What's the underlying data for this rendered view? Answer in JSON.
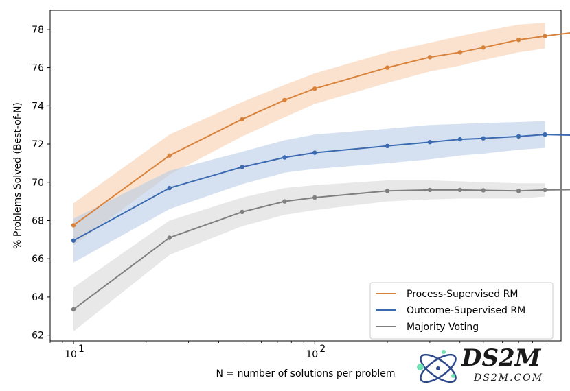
{
  "chart_data": {
    "type": "line",
    "xscale": "log",
    "xlim": [
      8,
      1050
    ],
    "ylim": [
      61.7,
      79.0
    ],
    "xlabel": "N = number of solutions per problem",
    "ylabel": "% Problems Solved (Best-of-N)",
    "x_ticks": [
      {
        "value": 10,
        "base": "10",
        "exp": "1"
      },
      {
        "value": 100,
        "base": "10",
        "exp": "2"
      }
    ],
    "y_ticks": [
      62,
      64,
      66,
      68,
      70,
      72,
      74,
      76,
      78
    ],
    "y_tick_labels": [
      "62",
      "64",
      "66",
      "68",
      "70",
      "72",
      "74",
      "76",
      "78"
    ],
    "x": [
      10,
      25,
      50,
      75,
      100,
      200,
      300,
      400,
      500,
      700,
      900,
      1860
    ],
    "legend_position": "bottom-right",
    "grid": false,
    "series": [
      {
        "name": "Process-Supervised RM",
        "color": "#d9823b",
        "band_color": "#f6cfae",
        "values": [
          67.75,
          71.4,
          73.3,
          74.3,
          74.9,
          76.0,
          76.55,
          76.8,
          77.05,
          77.45,
          77.65,
          78.15
        ],
        "band_upper": [
          68.9,
          72.5,
          74.2,
          75.1,
          75.7,
          76.8,
          77.3,
          77.65,
          77.9,
          78.25,
          78.35,
          null
        ],
        "band_lower": [
          66.7,
          70.4,
          72.4,
          73.4,
          74.1,
          75.2,
          75.8,
          76.1,
          76.4,
          76.8,
          77.0,
          null
        ]
      },
      {
        "name": "Outcome-Supervised RM",
        "color": "#3c6ab0",
        "band_color": "#b9cde8",
        "values": [
          66.95,
          69.7,
          70.8,
          71.3,
          71.55,
          71.9,
          72.1,
          72.25,
          72.3,
          72.4,
          72.5,
          72.4
        ],
        "band_upper": [
          68.1,
          70.6,
          71.6,
          72.2,
          72.5,
          72.8,
          73.0,
          73.05,
          73.1,
          73.15,
          73.2,
          null
        ],
        "band_lower": [
          65.8,
          68.6,
          69.9,
          70.5,
          70.7,
          71.0,
          71.2,
          71.4,
          71.5,
          71.7,
          71.8,
          null
        ]
      },
      {
        "name": "Majority Voting",
        "color": "#7f7f7f",
        "band_color": "#d9d9d9",
        "values": [
          63.35,
          67.1,
          68.45,
          69.0,
          69.2,
          69.55,
          69.6,
          69.6,
          69.58,
          69.55,
          69.6,
          69.65
        ],
        "band_upper": [
          64.5,
          68.0,
          69.2,
          69.7,
          69.85,
          70.1,
          70.1,
          70.05,
          70.0,
          69.95,
          69.95,
          null
        ],
        "band_lower": [
          62.2,
          66.2,
          67.7,
          68.3,
          68.55,
          69.0,
          69.1,
          69.15,
          69.15,
          69.15,
          69.25,
          null
        ]
      }
    ]
  },
  "watermark": {
    "title": "DS2M",
    "subtitle": "DS2M.COM"
  }
}
